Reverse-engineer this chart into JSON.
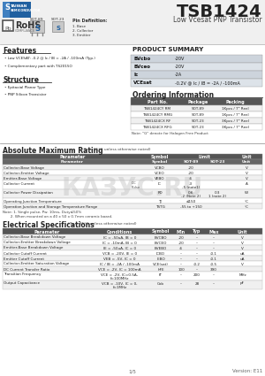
{
  "title": "TSB1424",
  "subtitle": "Low Vcesat PNP Transistor",
  "product_summary_labels": [
    "BVcbo",
    "BVceo",
    "Ic",
    "VCEsat"
  ],
  "product_summary_values": [
    "-20V",
    "-20V",
    "-2A",
    "-0.2V @ Ic / IB = -2A / -100mA"
  ],
  "features": [
    "Low VCESAT: -0.2 @ Ic / IB = -2A / -100mA (Typ.)",
    "Complementary part with TS2015O"
  ],
  "structure": [
    "Epitaxial Planar Type",
    "PNP Silicon Transistor"
  ],
  "ordering_rows": [
    [
      "TSB1424CY RM",
      "SOT-89",
      "1Kpcs / 7\" Reel"
    ],
    [
      "TSB1424CY RMG",
      "SOT-89",
      "1Kpcs / 7\" Reel"
    ],
    [
      "TSB1424CX RF",
      "SOT-23",
      "3Kpcs / 7\" Reel"
    ],
    [
      "TSB1424CX RFG",
      "SOT-23",
      "3Kpcs / 7\" Reel"
    ]
  ],
  "abs_rows": [
    [
      "Collector-Base Voltage",
      "VCBO",
      "-20",
      "",
      "V"
    ],
    [
      "Collector-Emitter Voltage",
      "VCEO",
      "-20",
      "",
      "V"
    ],
    [
      "Emitter-Base Voltage",
      "VEBO",
      "-6",
      "",
      "V"
    ],
    [
      "Collector Current",
      "IC",
      "-3\n-5 (note1)",
      "",
      "A"
    ],
    [
      "Collector Power Dissipation",
      "PD",
      "0.6\n-2 (Note 2)",
      "0.3\n1 (note 2)",
      "W"
    ],
    [
      "Operating Junction Temperature",
      "TJ",
      "≤150",
      "",
      "°C"
    ],
    [
      "Operation Junction and Storage Temperature Range",
      "TSTG",
      "-55 to +150",
      "",
      "°C"
    ]
  ],
  "elec_rows": [
    [
      "Collector-Base Breakdown Voltage",
      "IC = -50uA, IB = 0",
      "BVCBO",
      "-20",
      "--",
      "--",
      "V"
    ],
    [
      "Collector-Emitter Breakdown Voltage",
      "IC = -10mA, IB = 0",
      "BVCEO",
      "-20",
      "--",
      "--",
      "V"
    ],
    [
      "Emitter-Base Breakdown Voltage",
      "IE = -50uA, IC = 0",
      "BVEBO",
      "-6",
      "--",
      "--",
      "V"
    ],
    [
      "Collector Cutoff Current",
      "VCB = -20V, IE = 0",
      "ICBO",
      "--",
      "--",
      "-0.1",
      "uA"
    ],
    [
      "Emitter Cutoff Current",
      "VEB = -5V, IC = 0",
      "IEBO",
      "--",
      "--",
      "-0.1",
      "uA"
    ],
    [
      "Collector-Emitter Saturation Voltage",
      "IC / IB = -2A / -100mA",
      "VCE(sat)",
      "--",
      "-0.2",
      "-0.5",
      "V"
    ],
    [
      "DC Current Transfer Ratio",
      "VCE = -2V, IC = 100mA",
      "hFE",
      "100",
      "--",
      "390",
      ""
    ],
    [
      "Transition Frequency",
      "VCE = -2V, IC=0.5A,\nf=100MHz",
      "fT",
      "--",
      "200",
      "--",
      "MHz"
    ],
    [
      "Output Capacitance",
      "VCB = -10V, IC = 0,\nf=1MHz",
      "Cob",
      "--",
      "28",
      "--",
      "pF"
    ]
  ]
}
